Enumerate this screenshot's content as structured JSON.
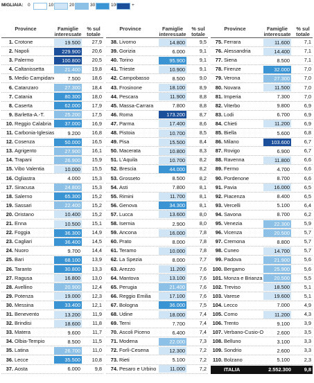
{
  "legend": {
    "title": "MIGLIAIA:",
    "ticks": [
      0,
      10,
      20,
      30,
      100
    ],
    "plus": "+",
    "colors": [
      "#ffffff",
      "#cfe4f4",
      "#8cc0e6",
      "#3a93d3",
      "#1b4f9a"
    ]
  },
  "columns": [
    {
      "header": {
        "province": "Province",
        "famiglie": "Famiglie interessate",
        "pct": "% sul totale"
      },
      "rows": [
        [
          "1.",
          "Crotone",
          "19.500",
          "27,9"
        ],
        [
          "2.",
          "Napoli",
          "229.900",
          "20,6"
        ],
        [
          "3.",
          "Palermo",
          "100.800",
          "20,5"
        ],
        [
          "4.",
          "Caltanissetta",
          "21.400",
          "19,8"
        ],
        [
          "5.",
          "Medio Campidano",
          "7.500",
          "18,6"
        ],
        [
          "6.",
          "Catanzaro",
          "27.300",
          "18,4"
        ],
        [
          "7.",
          "Catania",
          "80.300",
          "18,0"
        ],
        [
          "8.",
          "Caserta",
          "62.000",
          "17,9"
        ],
        [
          "9.",
          "Barletta-A.-T.",
          "25.200",
          "17,5"
        ],
        [
          "10.",
          "Reggio Calabria",
          "37.000",
          "16,9"
        ],
        [
          "11.",
          "Carbonia-Iglesias",
          "9.200",
          "16,8"
        ],
        [
          "12.",
          "Cosenza",
          "50.000",
          "16,5"
        ],
        [
          "13.",
          "Agrigento",
          "27.900",
          "16,1"
        ],
        [
          "14.",
          "Trapani",
          "26.900",
          "15,9"
        ],
        [
          "15.",
          "Vibo Valentia",
          "10.000",
          "15,5"
        ],
        [
          "16.",
          "Ogliastra",
          "4.000",
          "15,3"
        ],
        [
          "17.",
          "Siracusa",
          "24.800",
          "15,3"
        ],
        [
          "18.",
          "Salerno",
          "65.300",
          "15,2"
        ],
        [
          "19.",
          "Sassari",
          "22.400",
          "15,2"
        ],
        [
          "20.",
          "Oristano",
          "10.400",
          "15,2"
        ],
        [
          "21.",
          "Enna",
          "10.500",
          "15,1"
        ],
        [
          "22.",
          "Foggia",
          "36.300",
          "14,9"
        ],
        [
          "23.",
          "Cagliari",
          "36.400",
          "14,5"
        ],
        [
          "24.",
          "Nuoro",
          "9.700",
          "14,4"
        ],
        [
          "25.",
          "Bari",
          "68.100",
          "13,9"
        ],
        [
          "26.",
          "Taranto",
          "30.800",
          "13,3"
        ],
        [
          "27.",
          "Ragusa",
          "16.800",
          "13,0"
        ],
        [
          "28.",
          "Avellino",
          "20.900",
          "12,4"
        ],
        [
          "29.",
          "Potenza",
          "19.000",
          "12,3"
        ],
        [
          "30.",
          "Messina",
          "33.400",
          "12,1"
        ],
        [
          "31.",
          "Benevento",
          "13.200",
          "11,9"
        ],
        [
          "32.",
          "Brindisi",
          "18.600",
          "11,8"
        ],
        [
          "33.",
          "Matera",
          "9.600",
          "11,7"
        ],
        [
          "34.",
          "Olbia-Tempio",
          "8.500",
          "11,5"
        ],
        [
          "35.",
          "Latina",
          "26.700",
          "11,0"
        ],
        [
          "36.",
          "Lecce",
          "35.500",
          "10,8"
        ],
        [
          "37.",
          "Aosta",
          "6.000",
          "9,8"
        ]
      ]
    },
    {
      "header": {
        "province": "Province",
        "famiglie": "Famiglie interessate",
        "pct": "% sul totale"
      },
      "rows": [
        [
          "38.",
          "Livorno",
          "14.800",
          "9,5"
        ],
        [
          "39.",
          "Gorizia",
          "6.000",
          "9,1"
        ],
        [
          "40.",
          "Torino",
          "95.900",
          "9,1"
        ],
        [
          "41.",
          "Trieste",
          "10.900",
          "9,1"
        ],
        [
          "42.",
          "Campobasso",
          "8.500",
          "9,0"
        ],
        [
          "43.",
          "Frosinone",
          "18.100",
          "8,9"
        ],
        [
          "44.",
          "Pescara",
          "11.900",
          "8,8"
        ],
        [
          "45.",
          "Massa-Carrara",
          "7.800",
          "8,8"
        ],
        [
          "46.",
          "Roma",
          "173.200",
          "8,7"
        ],
        [
          "47.",
          "Parma",
          "17.400",
          "8,6"
        ],
        [
          "48.",
          "Pistoia",
          "10.700",
          "8,5"
        ],
        [
          "49.",
          "Pisa",
          "15.500",
          "8,4"
        ],
        [
          "50.",
          "Macerata",
          "10.800",
          "8,3"
        ],
        [
          "51.",
          "L'Aquila",
          "10.700",
          "8,2"
        ],
        [
          "52.",
          "Brescia",
          "44.000",
          "8,2"
        ],
        [
          "53.",
          "Grosseto",
          "8.500",
          "8,2"
        ],
        [
          "54.",
          "Asti",
          "7.800",
          "8,1"
        ],
        [
          "55.",
          "Rimini",
          "11.700",
          "8,1"
        ],
        [
          "56.",
          "Genova",
          "34.300",
          "8,1"
        ],
        [
          "57.",
          "Lucca",
          "13.600",
          "8,0"
        ],
        [
          "58.",
          "Isernia",
          "2.900",
          "8,0"
        ],
        [
          "59.",
          "Ancona",
          "16.000",
          "7,8"
        ],
        [
          "60.",
          "Prato",
          "8.000",
          "7,8"
        ],
        [
          "61.",
          "Teramo",
          "10.000",
          "7,8"
        ],
        [
          "62.",
          "La Spezia",
          "8.000",
          "7,7"
        ],
        [
          "63.",
          "Arezzo",
          "11.200",
          "7,6"
        ],
        [
          "64.",
          "Mantova",
          "13.100",
          "7,6"
        ],
        [
          "65.",
          "Perugia",
          "21.400",
          "7,6"
        ],
        [
          "66.",
          "Reggio Emilia",
          "17.100",
          "7,6"
        ],
        [
          "67.",
          "Bologna",
          "36.000",
          "7,5"
        ],
        [
          "68.",
          "Udine",
          "18.000",
          "7,4"
        ],
        [
          "69.",
          "Terni",
          "7.700",
          "7,4"
        ],
        [
          "70.",
          "Ascoli Piceno",
          "6.400",
          "7,4"
        ],
        [
          "71.",
          "Modena",
          "22.000",
          "7,3"
        ],
        [
          "72.",
          "Forlì-Cesena",
          "12.300",
          "7,2"
        ],
        [
          "73.",
          "Rieti",
          "5.100",
          "7,2"
        ],
        [
          "74.",
          "Pesaro e Urbino",
          "11.000",
          "7,2"
        ]
      ]
    },
    {
      "header": {
        "province": "Province",
        "famiglie": "Famiglie interessate",
        "pct": "% sul totale"
      },
      "rows": [
        [
          "75.",
          "Ferrara",
          "11.600",
          "7,1"
        ],
        [
          "76.",
          "Alessandria",
          "14.400",
          "7,1"
        ],
        [
          "77.",
          "Siena",
          "8.500",
          "7,1"
        ],
        [
          "78.",
          "Firenze",
          "32.000",
          "7,0"
        ],
        [
          "79.",
          "Verona",
          "27.300",
          "7,0"
        ],
        [
          "80.",
          "Novara",
          "11.500",
          "7,0"
        ],
        [
          "81.",
          "Imperia",
          "7.300",
          "7,0"
        ],
        [
          "82.",
          "Viterbo",
          "9.800",
          "6,9"
        ],
        [
          "83.",
          "Lodi",
          "6.700",
          "6,9"
        ],
        [
          "84.",
          "Chieti",
          "11.200",
          "6,9"
        ],
        [
          "85.",
          "Biella",
          "5.600",
          "6,8"
        ],
        [
          "86.",
          "Milano",
          "103.600",
          "6,7"
        ],
        [
          "87.",
          "Rovigo",
          "6.900",
          "6,7"
        ],
        [
          "88.",
          "Ravenna",
          "11.800",
          "6,6"
        ],
        [
          "89.",
          "Fermo",
          "4.700",
          "6,6"
        ],
        [
          "90.",
          "Pordenone",
          "8.700",
          "6,6"
        ],
        [
          "91.",
          "Pavia",
          "16.000",
          "6,5"
        ],
        [
          "92.",
          "Piacenza",
          "8.400",
          "6,5"
        ],
        [
          "93.",
          "Vercelli",
          "5.100",
          "6,4"
        ],
        [
          "94.",
          "Savona",
          "8.700",
          "6,2"
        ],
        [
          "95.",
          "Venezia",
          "22.300",
          "5,9"
        ],
        [
          "96.",
          "Vicenza",
          "20.500",
          "5,7"
        ],
        [
          "97.",
          "Cremona",
          "8.800",
          "5,7"
        ],
        [
          "98.",
          "Cuneo",
          "14.700",
          "5,7"
        ],
        [
          "99.",
          "Padova",
          "21.900",
          "5,6"
        ],
        [
          "100.",
          "Bergamo",
          "25.900",
          "5,6"
        ],
        [
          "101.",
          "Monza e Brianza",
          "20.500",
          "5,5"
        ],
        [
          "102.",
          "Treviso",
          "18.500",
          "5,1"
        ],
        [
          "103.",
          "Varese",
          "19.600",
          "5,1"
        ],
        [
          "104.",
          "Lecco",
          "7.000",
          "4,9"
        ],
        [
          "105.",
          "Como",
          "11.200",
          "4,3"
        ],
        [
          "106.",
          "Trento",
          "9.100",
          "3,9"
        ],
        [
          "107.",
          "Verbano-Cusio-O.",
          "2.600",
          "3,5"
        ],
        [
          "108.",
          "Belluno",
          "3.100",
          "3,3"
        ],
        [
          "109.",
          "Sondrio",
          "2.600",
          "3,3"
        ],
        [
          "110.",
          "Bolzano",
          "5.100",
          "2,3"
        ]
      ]
    }
  ],
  "total": [
    "ITALIA",
    "2.552.300",
    "9,8"
  ]
}
